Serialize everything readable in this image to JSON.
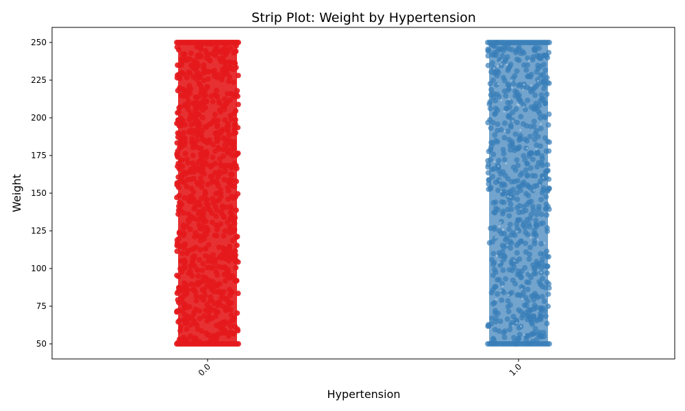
{
  "chart_data": {
    "type": "scatter",
    "subtype": "strip",
    "title": "Strip Plot: Weight by Hypertension",
    "xlabel": "Hypertension",
    "ylabel": "Weight",
    "categories": [
      "0.0",
      "1.0"
    ],
    "x_tick_rotation": 45,
    "ylim": [
      40,
      260
    ],
    "y_ticks": [
      50,
      75,
      100,
      125,
      150,
      175,
      200,
      225,
      250
    ],
    "grid": false,
    "legend": "none",
    "series": [
      {
        "category": "0.0",
        "color": "#e41a1c",
        "value_range": [
          50,
          250
        ],
        "density": "very dense, fully saturated"
      },
      {
        "category": "1.0",
        "color": "#377eb8",
        "value_range": [
          50,
          250
        ],
        "density": "dense with sparse gaps"
      }
    ]
  }
}
